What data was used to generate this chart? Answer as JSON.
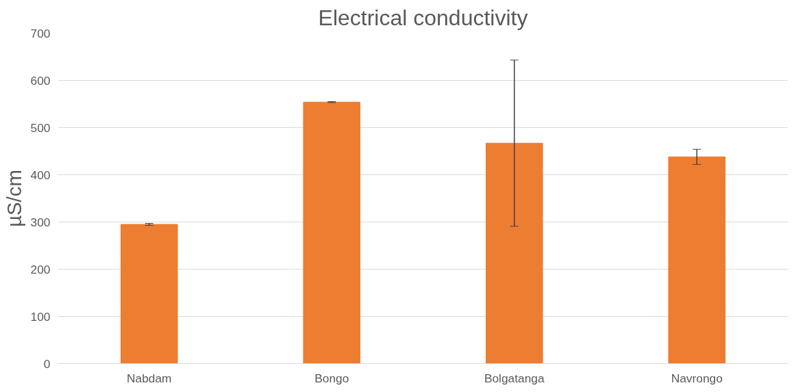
{
  "chart_data": {
    "type": "bar",
    "title": "Electrical conductivity",
    "ylabel": "µS/cm",
    "categories": [
      "Nabdam",
      "Bongo",
      "Bolgatanga",
      "Navrongo"
    ],
    "series": [
      {
        "color": "#ed7d31",
        "values": [
          295,
          554,
          467,
          438
        ],
        "errors": [
          2,
          1,
          176,
          16
        ]
      }
    ],
    "ylim": [
      0,
      700
    ],
    "yticks": [
      0,
      100,
      200,
      300,
      400,
      500,
      600,
      700
    ],
    "grid": "y"
  }
}
